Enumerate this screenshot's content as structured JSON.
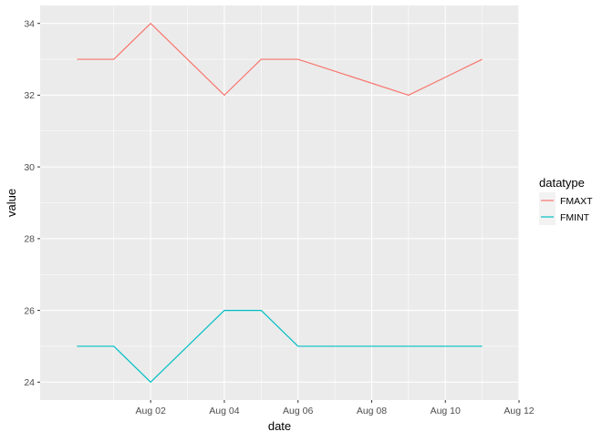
{
  "chart_data": {
    "type": "line",
    "xlabel": "date",
    "ylabel": "value",
    "x": [
      "2016-07-31",
      "2016-08-01",
      "2016-08-02",
      "2016-08-04",
      "2016-08-05",
      "2016-08-06",
      "2016-08-09",
      "2016-08-11"
    ],
    "x_ticks": [
      "2016-08-02",
      "2016-08-04",
      "2016-08-06",
      "2016-08-08",
      "2016-08-10",
      "2016-08-12"
    ],
    "x_tick_labels": [
      "Aug 02",
      "Aug 04",
      "Aug 06",
      "Aug 08",
      "Aug 10",
      "Aug 12"
    ],
    "xlim": [
      "2016-07-30",
      "2016-08-12"
    ],
    "y_ticks": [
      24,
      26,
      28,
      30,
      32,
      34
    ],
    "ylim": [
      23.5,
      34.5
    ],
    "grid": true,
    "legend_title": "datatype",
    "legend_position": "right",
    "series": [
      {
        "name": "FMAXT",
        "color": "#F8766D",
        "values": [
          33,
          33,
          34,
          32,
          33,
          33,
          32,
          33
        ]
      },
      {
        "name": "FMINT",
        "color": "#00BFC4",
        "values": [
          25,
          25,
          24,
          26,
          26,
          25,
          25,
          25
        ]
      }
    ]
  }
}
